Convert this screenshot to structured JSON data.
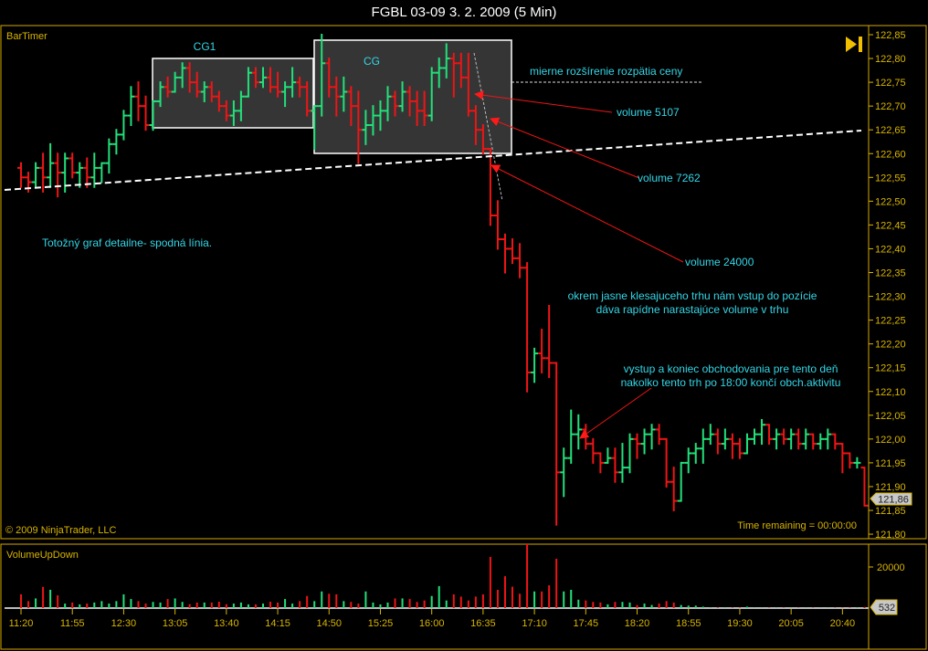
{
  "window_title": "FGBL 03-09  3. 2. 2009 (5 Min)",
  "colors": {
    "up": "#22e07a",
    "down": "#ee1515",
    "axis": "#d8b400",
    "annot": "#33d6e6",
    "frame": "#d4a800"
  },
  "labels": {
    "bar_timer": "BarTimer",
    "copyright": "© 2009 NinjaTrader, LLC",
    "time_remaining": "Time remaining = 00:00:00",
    "volume_panel": "VolumeUpDown",
    "last_price": "121,86",
    "last_volume": "532"
  },
  "annotations": {
    "box1": "CG1",
    "box2": "CG",
    "spread": "mierne rozšírenie rozpätia ceny",
    "vol1": "volume 5107",
    "vol2": "volume 7262",
    "vol3": "volume 24000",
    "detail": "Totožný graf detailne- spodná línia.",
    "entry1": "okrem jasne klesajuceho trhu nám vstup do pozície",
    "entry2": "dáva rapídne narastajúce volume v trhu",
    "exit1": "vystup a koniec obchodovania pre tento deň",
    "exit2": "nakolko tento trh po 18:00 končí obch.aktivitu"
  },
  "chart_data": [
    {
      "type": "ohlc",
      "title": "FGBL 03-09  3. 2. 2009 (5 Min)",
      "ylim": [
        121.8,
        122.85
      ],
      "y_ticks": [
        "122,85",
        "122,80",
        "122,75",
        "122,70",
        "122,65",
        "122,60",
        "122,55",
        "122,50",
        "122,45",
        "122,40",
        "122,35",
        "122,30",
        "122,25",
        "122,20",
        "122,15",
        "122,10",
        "122,05",
        "122,00",
        "121,95",
        "121,90",
        "121,85",
        "121,80"
      ],
      "x_ticks": [
        "11:20",
        "11:55",
        "12:30",
        "13:05",
        "13:40",
        "14:15",
        "14:50",
        "15:25",
        "16:00",
        "16:35",
        "17:10",
        "17:45",
        "18:20",
        "18:55",
        "19:30",
        "20:05",
        "20:40"
      ],
      "bars": [
        [
          122.57,
          122.58,
          122.53,
          122.55
        ],
        [
          122.55,
          122.56,
          122.52,
          122.54
        ],
        [
          122.54,
          122.58,
          122.53,
          122.57
        ],
        [
          122.57,
          122.6,
          122.52,
          122.55
        ],
        [
          122.55,
          122.62,
          122.53,
          122.58
        ],
        [
          122.58,
          122.6,
          122.51,
          122.56
        ],
        [
          122.56,
          122.6,
          122.52,
          122.59
        ],
        [
          122.59,
          122.6,
          122.55,
          122.56
        ],
        [
          122.56,
          122.58,
          122.53,
          122.57
        ],
        [
          122.57,
          122.59,
          122.53,
          122.55
        ],
        [
          122.55,
          122.6,
          122.53,
          122.57
        ],
        [
          122.57,
          122.58,
          122.54,
          122.58
        ],
        [
          122.58,
          122.63,
          122.56,
          122.62
        ],
        [
          122.62,
          122.65,
          122.6,
          122.64
        ],
        [
          122.64,
          122.69,
          122.63,
          122.68
        ],
        [
          122.68,
          122.74,
          122.66,
          122.72
        ],
        [
          122.72,
          122.75,
          122.67,
          122.7
        ],
        [
          122.7,
          122.72,
          122.65,
          122.66
        ],
        [
          122.66,
          122.71,
          122.65,
          122.71
        ],
        [
          122.71,
          122.75,
          122.7,
          122.74
        ],
        [
          122.74,
          122.76,
          122.72,
          122.73
        ],
        [
          122.73,
          122.77,
          122.73,
          122.76
        ],
        [
          122.76,
          122.79,
          122.74,
          122.78
        ],
        [
          122.78,
          122.79,
          122.73,
          122.75
        ],
        [
          122.75,
          122.77,
          122.72,
          122.73
        ],
        [
          122.73,
          122.75,
          122.71,
          122.74
        ],
        [
          122.74,
          122.75,
          122.71,
          122.72
        ],
        [
          122.72,
          122.73,
          122.69,
          122.7
        ],
        [
          122.7,
          122.71,
          122.67,
          122.68
        ],
        [
          122.68,
          122.71,
          122.66,
          122.69
        ],
        [
          122.69,
          122.73,
          122.67,
          122.72
        ],
        [
          122.72,
          122.78,
          122.72,
          122.77
        ],
        [
          122.77,
          122.78,
          122.74,
          122.75
        ],
        [
          122.75,
          122.78,
          122.74,
          122.76
        ],
        [
          122.76,
          122.78,
          122.73,
          122.74
        ],
        [
          122.74,
          122.77,
          122.72,
          122.73
        ],
        [
          122.73,
          122.75,
          122.7,
          122.74
        ],
        [
          122.74,
          122.78,
          122.72,
          122.75
        ],
        [
          122.75,
          122.76,
          122.72,
          122.74
        ],
        [
          122.74,
          122.75,
          122.68,
          122.69
        ],
        [
          122.69,
          122.7,
          122.61,
          122.7
        ],
        [
          122.7,
          122.85,
          122.68,
          122.79
        ],
        [
          122.79,
          122.8,
          122.72,
          122.74
        ],
        [
          122.74,
          122.76,
          122.68,
          122.72
        ],
        [
          122.72,
          122.76,
          122.69,
          122.73
        ],
        [
          122.73,
          122.74,
          122.66,
          122.7
        ],
        [
          122.7,
          122.73,
          122.58,
          122.65
        ],
        [
          122.65,
          122.69,
          122.62,
          122.66
        ],
        [
          122.66,
          122.7,
          122.64,
          122.68
        ],
        [
          122.68,
          122.71,
          122.65,
          122.69
        ],
        [
          122.69,
          122.74,
          122.67,
          122.72
        ],
        [
          122.72,
          122.73,
          122.68,
          122.7
        ],
        [
          122.7,
          122.75,
          122.69,
          122.73
        ],
        [
          122.73,
          122.74,
          122.68,
          122.71
        ],
        [
          122.71,
          122.73,
          122.66,
          122.69
        ],
        [
          122.69,
          122.73,
          122.66,
          122.68
        ],
        [
          122.68,
          122.78,
          122.67,
          122.77
        ],
        [
          122.77,
          122.8,
          122.74,
          122.78
        ],
        [
          122.78,
          122.83,
          122.76,
          122.8
        ],
        [
          122.8,
          122.81,
          122.72,
          122.79
        ],
        [
          122.79,
          122.81,
          122.74,
          122.76
        ],
        [
          122.76,
          122.81,
          122.68,
          122.69
        ],
        [
          122.69,
          122.7,
          122.62,
          122.65
        ],
        [
          122.65,
          122.66,
          122.6,
          122.61
        ],
        [
          122.61,
          122.61,
          122.45,
          122.47
        ],
        [
          122.47,
          122.5,
          122.4,
          122.42
        ],
        [
          122.42,
          122.43,
          122.35,
          122.4
        ],
        [
          122.4,
          122.42,
          122.37,
          122.38
        ],
        [
          122.38,
          122.41,
          122.34,
          122.36
        ],
        [
          122.36,
          122.37,
          122.1,
          122.14
        ],
        [
          122.14,
          122.19,
          122.12,
          122.18
        ],
        [
          122.18,
          122.23,
          122.14,
          122.17
        ],
        [
          122.17,
          122.28,
          122.13,
          122.16
        ],
        [
          122.16,
          122.16,
          121.82,
          121.93
        ],
        [
          121.93,
          121.98,
          121.88,
          121.96
        ],
        [
          121.96,
          122.06,
          121.95,
          122.01
        ],
        [
          122.01,
          122.05,
          121.98,
          122.02
        ],
        [
          122.02,
          122.03,
          121.98,
          121.99
        ],
        [
          121.99,
          122.0,
          121.95,
          121.97
        ],
        [
          121.97,
          121.97,
          121.93,
          121.95
        ],
        [
          121.95,
          121.98,
          121.95,
          121.96
        ],
        [
          121.96,
          121.98,
          121.91,
          121.93
        ],
        [
          121.93,
          121.99,
          121.91,
          121.94
        ],
        [
          121.94,
          122.01,
          121.93,
          122.0
        ],
        [
          122.0,
          122.01,
          121.96,
          121.99
        ],
        [
          121.99,
          122.02,
          121.97,
          122.01
        ],
        [
          122.01,
          122.03,
          121.98,
          122.02
        ],
        [
          122.02,
          122.03,
          121.99,
          122.0
        ],
        [
          122.0,
          122.0,
          121.9,
          121.91
        ],
        [
          121.91,
          121.94,
          121.85,
          121.87
        ],
        [
          121.87,
          121.95,
          121.87,
          121.95
        ],
        [
          121.95,
          121.98,
          121.93,
          121.97
        ],
        [
          121.97,
          121.99,
          121.95,
          121.98
        ],
        [
          121.98,
          122.02,
          121.95,
          122.0
        ],
        [
          122.0,
          122.03,
          121.99,
          122.01
        ],
        [
          122.01,
          122.02,
          121.97,
          121.99
        ],
        [
          121.99,
          122.02,
          121.98,
          122.0
        ],
        [
          122.0,
          122.01,
          121.96,
          121.99
        ],
        [
          121.99,
          122.0,
          121.96,
          121.97
        ],
        [
          121.97,
          122.01,
          121.97,
          122.0
        ],
        [
          122.0,
          122.02,
          121.99,
          122.01
        ],
        [
          122.01,
          122.04,
          121.99,
          122.03
        ],
        [
          122.03,
          122.03,
          121.99,
          122.0
        ],
        [
          122.0,
          122.02,
          121.98,
          122.01
        ],
        [
          122.01,
          122.02,
          121.99,
          122.0
        ],
        [
          122.0,
          122.02,
          121.98,
          122.01
        ],
        [
          122.01,
          122.02,
          121.98,
          121.99
        ],
        [
          121.99,
          122.02,
          121.98,
          122.01
        ],
        [
          122.01,
          122.01,
          121.98,
          121.99
        ],
        [
          121.99,
          122.01,
          121.98,
          122.0
        ],
        [
          122.0,
          122.02,
          121.98,
          122.01
        ],
        [
          122.01,
          122.01,
          121.98,
          121.99
        ],
        [
          121.99,
          121.99,
          121.93,
          121.97
        ],
        [
          121.97,
          121.97,
          121.94,
          121.95
        ],
        [
          121.95,
          121.96,
          121.94,
          121.95
        ],
        [
          121.94,
          121.94,
          121.86,
          121.86
        ]
      ],
      "last_price": 121.86
    },
    {
      "type": "bar",
      "title": "VolumeUpDown",
      "ylim": [
        0,
        32000
      ],
      "y_ticks": [
        "20000"
      ],
      "values": [
        6700,
        3400,
        4700,
        10300,
        8900,
        6200,
        2200,
        2700,
        1800,
        2200,
        2700,
        3400,
        2200,
        3400,
        6700,
        4400,
        3400,
        2200,
        3000,
        2700,
        4400,
        4700,
        3000,
        1900,
        2700,
        2700,
        2700,
        3100,
        1900,
        2200,
        2700,
        1800,
        1800,
        2200,
        3100,
        2700,
        4400,
        2200,
        3400,
        5900,
        3400,
        8100,
        7000,
        6700,
        3400,
        3000,
        2200,
        8100,
        2700,
        1800,
        2700,
        4700,
        4700,
        4400,
        3000,
        3700,
        5900,
        10700,
        3700,
        6700,
        5600,
        3700,
        5600,
        6700,
        24900,
        8900,
        15500,
        10400,
        7000,
        31100,
        8100,
        8100,
        11100,
        24000,
        8100,
        8900,
        4100,
        3700,
        3000,
        2700,
        1800,
        3000,
        3000,
        2700,
        1500,
        2200,
        1500,
        2200,
        3400,
        2700,
        1500,
        1200,
        1200,
        700,
        300,
        250,
        200,
        200,
        200,
        700,
        200,
        150,
        150,
        150,
        150,
        150,
        150,
        150,
        150,
        150,
        150,
        150,
        150,
        200,
        300,
        532
      ],
      "last_value": 532
    }
  ]
}
